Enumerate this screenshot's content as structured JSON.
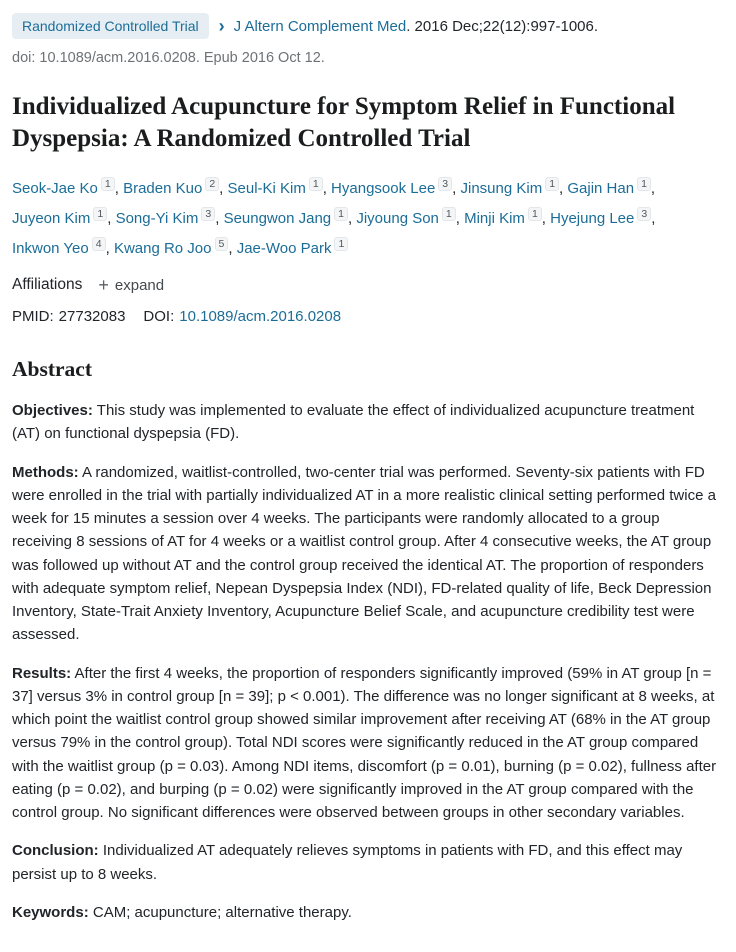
{
  "top_bar": {
    "badge": "Randomized Controlled Trial",
    "chevron": "›",
    "journal_link": "J Altern Complement Med",
    "citation_suffix": ". 2016 Dec;22(12):997-1006.",
    "doi_epub_line": "doi: 10.1089/acm.2016.0208. Epub 2016 Oct 12."
  },
  "title": "Individualized Acupuncture for Symptom Relief in Functional Dyspepsia: A Randomized Controlled Trial",
  "author_separator": ", ",
  "authors": [
    {
      "name": "Seok-Jae Ko",
      "sup": "1"
    },
    {
      "name": "Braden Kuo",
      "sup": "2"
    },
    {
      "name": "Seul-Ki Kim",
      "sup": "1"
    },
    {
      "name": "Hyangsook Lee",
      "sup": "3"
    },
    {
      "name": "Jinsung Kim",
      "sup": "1"
    },
    {
      "name": "Gajin Han",
      "sup": "1"
    },
    {
      "name": "Juyeon Kim",
      "sup": "1"
    },
    {
      "name": "Song-Yi Kim",
      "sup": "3"
    },
    {
      "name": "Seungwon Jang",
      "sup": "1"
    },
    {
      "name": "Jiyoung Son",
      "sup": "1"
    },
    {
      "name": "Minji Kim",
      "sup": "1"
    },
    {
      "name": "Hyejung Lee",
      "sup": "3"
    },
    {
      "name": "Inkwon Yeo",
      "sup": "4"
    },
    {
      "name": "Kwang Ro Joo",
      "sup": "5"
    },
    {
      "name": "Jae-Woo Park",
      "sup": "1"
    }
  ],
  "affiliations": {
    "label": "Affiliations",
    "expand_icon": "+",
    "expand_label": "expand"
  },
  "identifiers": {
    "pmid_label": "PMID:",
    "pmid_value": "27732083",
    "doi_label": "DOI:",
    "doi_value": "10.1089/acm.2016.0208"
  },
  "abstract": {
    "heading": "Abstract",
    "sections": [
      {
        "label": "Objectives:",
        "text": "This study was implemented to evaluate the effect of individualized acupuncture treatment (AT) on functional dyspepsia (FD)."
      },
      {
        "label": "Methods:",
        "text": "A randomized, waitlist-controlled, two-center trial was performed. Seventy-six patients with FD were enrolled in the trial with partially individualized AT in a more realistic clinical setting performed twice a week for 15 minutes a session over 4 weeks. The participants were randomly allocated to a group receiving 8 sessions of AT for 4 weeks or a waitlist control group. After 4 consecutive weeks, the AT group was followed up without AT and the control group received the identical AT. The proportion of responders with adequate symptom relief, Nepean Dyspepsia Index (NDI), FD-related quality of life, Beck Depression Inventory, State-Trait Anxiety Inventory, Acupuncture Belief Scale, and acupuncture credibility test were assessed."
      },
      {
        "label": "Results:",
        "text": "After the first 4 weeks, the proportion of responders significantly improved (59% in AT group [n = 37] versus 3% in control group [n = 39]; p < 0.001). The difference was no longer significant at 8 weeks, at which point the waitlist control group showed similar improvement after receiving AT (68% in the AT group versus 79% in the control group). Total NDI scores were significantly reduced in the AT group compared with the waitlist group (p = 0.03). Among NDI items, discomfort (p = 0.01), burning (p = 0.02), fullness after eating (p = 0.02), and burping (p = 0.02) were significantly improved in the AT group compared with the control group. No significant differences were observed between groups in other secondary variables."
      },
      {
        "label": "Conclusion:",
        "text": "Individualized AT adequately relieves symptoms in patients with FD, and this effect may persist up to 8 weeks."
      },
      {
        "label": "Keywords:",
        "text": "CAM; acupuncture; alternative therapy."
      }
    ]
  },
  "colors": {
    "link": "#1b6d98",
    "badge_bg": "#e7eef3",
    "text": "#212529",
    "muted": "#6d7276"
  }
}
